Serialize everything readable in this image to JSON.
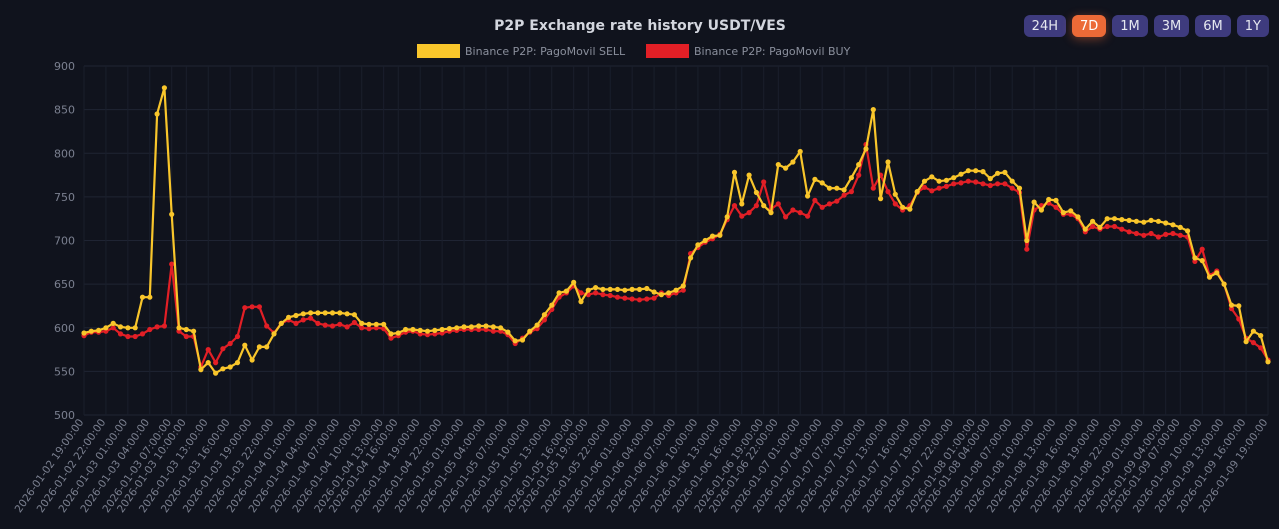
{
  "range_buttons": [
    {
      "label": "24H",
      "active": false
    },
    {
      "label": "7D",
      "active": true
    },
    {
      "label": "1M",
      "active": false
    },
    {
      "label": "3M",
      "active": false
    },
    {
      "label": "6M",
      "active": false
    },
    {
      "label": "1Y",
      "active": false
    }
  ],
  "chart_data": {
    "type": "line",
    "title": "P2P Exchange rate history USDT/VES",
    "legend_position": "top-center",
    "ylim": [
      500,
      900
    ],
    "yticks": [
      500,
      550,
      600,
      650,
      700,
      750,
      800,
      850,
      900
    ],
    "grid": true,
    "x_labels": [
      "2026-01-02 19:00:00",
      "2026-01-02 22:00:00",
      "2026-01-03 01:00:00",
      "2026-01-03 04:00:00",
      "2026-01-03 07:00:00",
      "2026-01-03 10:00:00",
      "2026-01-03 13:00:00",
      "2026-01-03 16:00:00",
      "2026-01-03 19:00:00",
      "2026-01-03 22:00:00",
      "2026-01-04 01:00:00",
      "2026-01-04 04:00:00",
      "2026-01-04 07:00:00",
      "2026-01-04 10:00:00",
      "2026-01-04 13:00:00",
      "2026-01-04 16:00:00",
      "2026-01-04 19:00:00",
      "2026-01-04 22:00:00",
      "2026-01-05 01:00:00",
      "2026-01-05 04:00:00",
      "2026-01-05 07:00:00",
      "2026-01-05 10:00:00",
      "2026-01-05 13:00:00",
      "2026-01-05 16:00:00",
      "2026-01-05 19:00:00",
      "2026-01-05 22:00:00",
      "2026-01-06 01:00:00",
      "2026-01-06 04:00:00",
      "2026-01-06 07:00:00",
      "2026-01-06 10:00:00",
      "2026-01-06 13:00:00",
      "2026-01-06 16:00:00",
      "2026-01-06 19:00:00",
      "2026-01-06 22:00:00",
      "2026-01-07 01:00:00",
      "2026-01-07 04:00:00",
      "2026-01-07 07:00:00",
      "2026-01-07 10:00:00",
      "2026-01-07 13:00:00",
      "2026-01-07 16:00:00",
      "2026-01-07 19:00:00",
      "2026-01-07 22:00:00",
      "2026-01-08 01:00:00",
      "2026-01-08 04:00:00",
      "2026-01-08 07:00:00",
      "2026-01-08 10:00:00",
      "2026-01-08 13:00:00",
      "2026-01-08 16:00:00",
      "2026-01-08 19:00:00",
      "2026-01-08 22:00:00",
      "2026-01-09 01:00:00",
      "2026-01-09 04:00:00",
      "2026-01-09 07:00:00",
      "2026-01-09 10:00:00",
      "2026-01-09 13:00:00",
      "2026-01-09 16:00:00",
      "2026-01-09 19:00:00"
    ],
    "series": [
      {
        "name": "Binance P2P: PagoMovil SELL",
        "color": "#f9c62b",
        "values": [
          594,
          596,
          597,
          600,
          605,
          601,
          600,
          600,
          635,
          635,
          845,
          875,
          730,
          600,
          598,
          596,
          552,
          560,
          548,
          553,
          555,
          560,
          580,
          563,
          578,
          578,
          593,
          605,
          612,
          614,
          616,
          617,
          617,
          617,
          617,
          617,
          616,
          615,
          605,
          604,
          604,
          604,
          593,
          594,
          598,
          598,
          597,
          596,
          597,
          598,
          599,
          600,
          601,
          601,
          602,
          602,
          601,
          600,
          595,
          585,
          586,
          596,
          603,
          615,
          626,
          640,
          642,
          652,
          630,
          643,
          646,
          644,
          644,
          644,
          643,
          644,
          644,
          645,
          641,
          638,
          640,
          643,
          648,
          680,
          695,
          700,
          705,
          706,
          727,
          778,
          742,
          775,
          755,
          740,
          732,
          787,
          783,
          790,
          802,
          751,
          770,
          766,
          760,
          760,
          758,
          772,
          787,
          805,
          850,
          748,
          790,
          753,
          738,
          736,
          756,
          768,
          773,
          768,
          769,
          772,
          776,
          780,
          780,
          779,
          771,
          777,
          778,
          768,
          760,
          700,
          744,
          735,
          747,
          746,
          732,
          734,
          727,
          713,
          722,
          715,
          725,
          725,
          724,
          723,
          722,
          721,
          723,
          722,
          720,
          718,
          715,
          711,
          680,
          677,
          658,
          663,
          650,
          626,
          625,
          584,
          596,
          591,
          561
        ]
      },
      {
        "name": "Binance P2P: PagoMovil BUY",
        "color": "#e21f26",
        "values": [
          591,
          595,
          595,
          596,
          600,
          593,
          590,
          590,
          593,
          598,
          601,
          602,
          673,
          596,
          590,
          590,
          555,
          575,
          560,
          576,
          582,
          590,
          623,
          624,
          624,
          602,
          594,
          605,
          609,
          605,
          609,
          611,
          605,
          603,
          602,
          604,
          601,
          606,
          600,
          599,
          600,
          599,
          588,
          591,
          595,
          596,
          593,
          592,
          593,
          594,
          596,
          597,
          598,
          598,
          598,
          598,
          596,
          596,
          592,
          582,
          588,
          595,
          599,
          609,
          621,
          635,
          640,
          648,
          640,
          638,
          640,
          638,
          637,
          635,
          634,
          633,
          632,
          633,
          634,
          640,
          637,
          640,
          643,
          685,
          692,
          698,
          702,
          707,
          724,
          740,
          728,
          732,
          740,
          767,
          736,
          742,
          727,
          735,
          732,
          728,
          746,
          738,
          742,
          745,
          752,
          756,
          775,
          810,
          760,
          775,
          756,
          742,
          735,
          740,
          755,
          761,
          757,
          760,
          762,
          765,
          766,
          768,
          767,
          765,
          763,
          765,
          765,
          760,
          755,
          690,
          735,
          740,
          743,
          738,
          730,
          730,
          725,
          710,
          716,
          713,
          716,
          716,
          713,
          710,
          708,
          706,
          708,
          704,
          707,
          708,
          706,
          704,
          676,
          690,
          660,
          665,
          650,
          622,
          610,
          588,
          583,
          577,
          563
        ]
      }
    ]
  }
}
